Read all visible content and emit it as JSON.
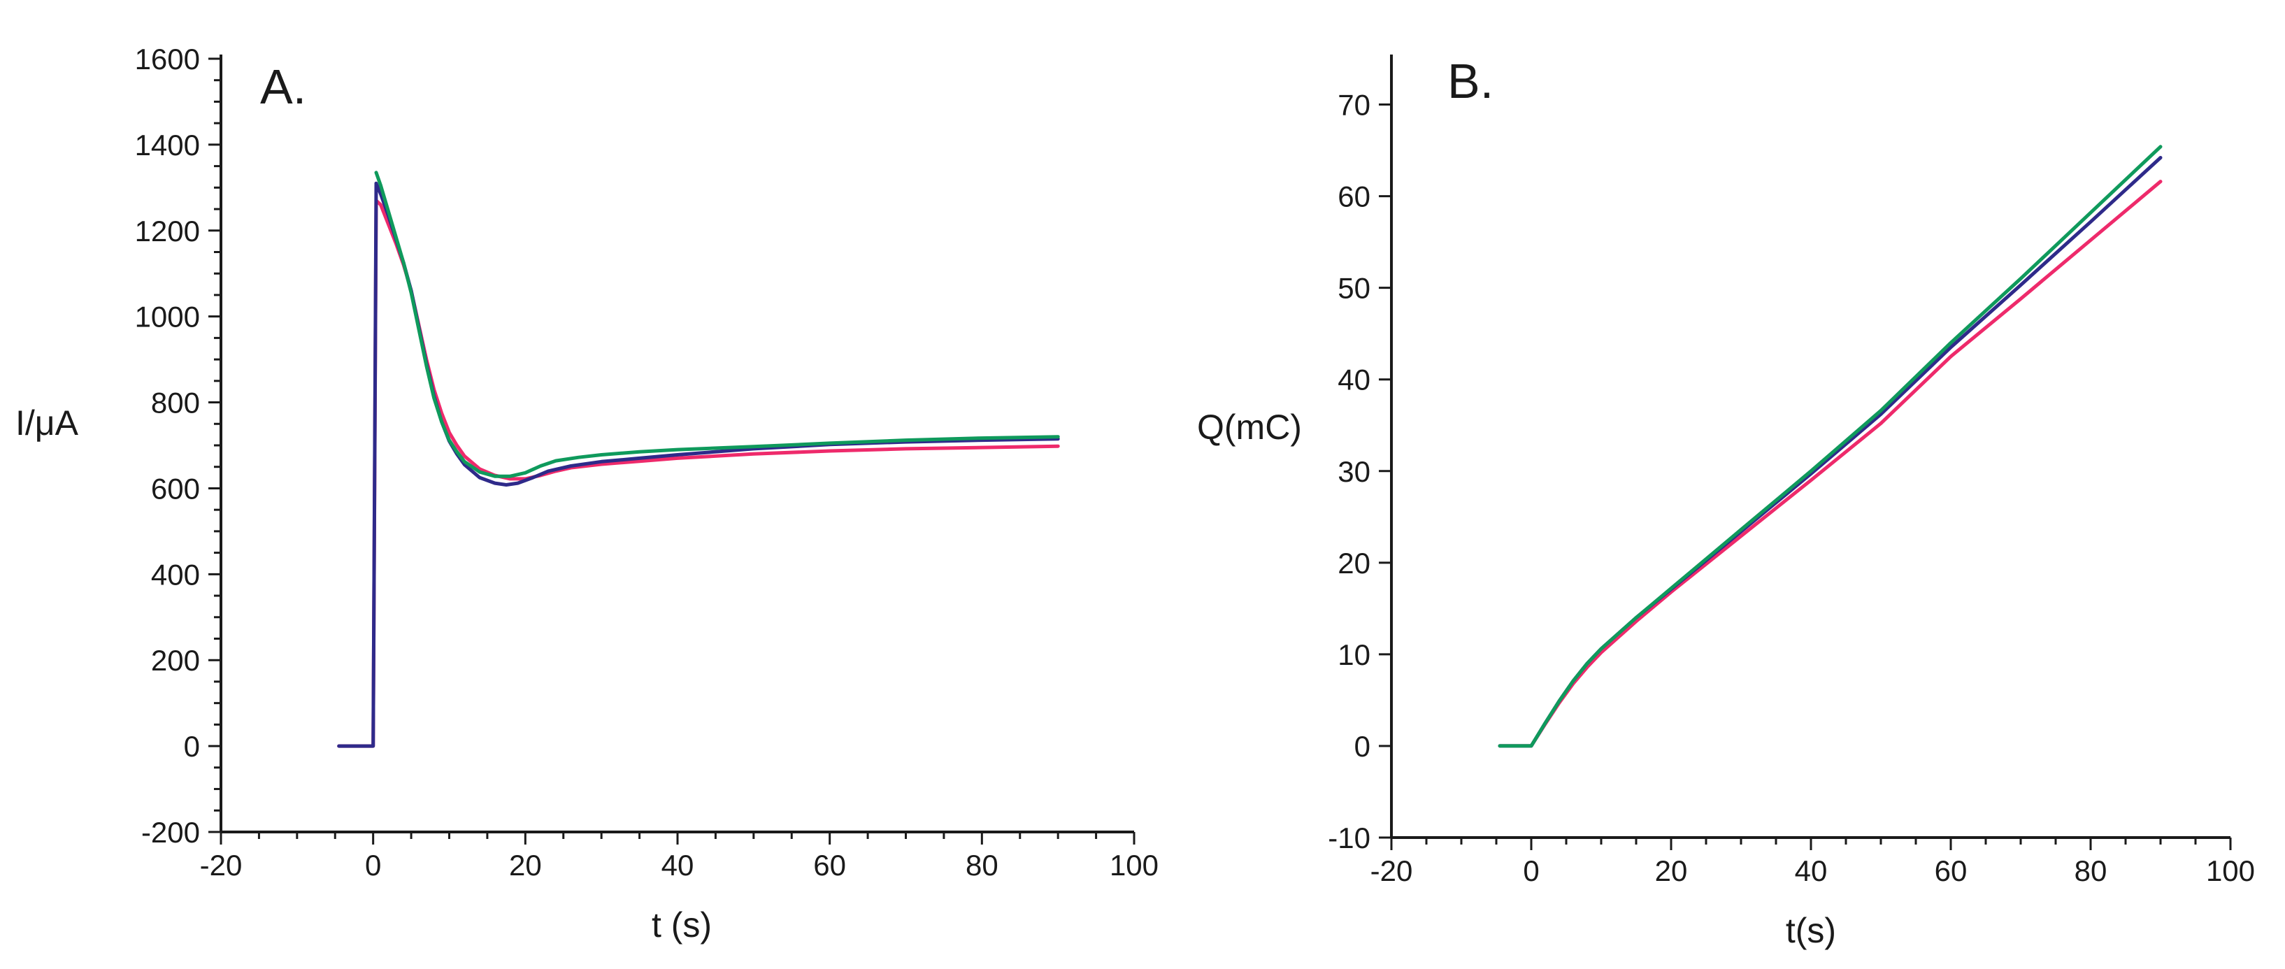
{
  "chart_data": [
    {
      "type": "line",
      "panel_label": "A.",
      "title": "",
      "xlabel": "t (s)",
      "ylabel": "I/μA",
      "xlim": [
        -20,
        100
      ],
      "ylim": [
        -200,
        1600
      ],
      "xticks": [
        -20,
        0,
        20,
        40,
        60,
        80,
        100
      ],
      "yticks": [
        -200,
        0,
        200,
        400,
        600,
        800,
        1000,
        1200,
        1400,
        1600
      ],
      "grid": false,
      "legend": "none",
      "series": [
        {
          "name": "pink",
          "color": "#ee2a6b",
          "x": [
            -4.5,
            0,
            0.4,
            1,
            2,
            3,
            4,
            5,
            6,
            7,
            8,
            9,
            10,
            11,
            12,
            14,
            16,
            18,
            20,
            22,
            24,
            26,
            30,
            35,
            40,
            50,
            60,
            70,
            80,
            90
          ],
          "y": [
            0,
            0,
            1270,
            1260,
            1215,
            1170,
            1120,
            1060,
            980,
            900,
            830,
            775,
            730,
            700,
            675,
            645,
            630,
            622,
            622,
            630,
            640,
            648,
            656,
            663,
            670,
            680,
            687,
            692,
            695,
            698
          ]
        },
        {
          "name": "blue",
          "color": "#2e2a8a",
          "x": [
            -4.5,
            0,
            0.4,
            1,
            2,
            3,
            4,
            5,
            6,
            7,
            8,
            9,
            10,
            11,
            12,
            14,
            16,
            17.5,
            19,
            21,
            23,
            26,
            30,
            35,
            40,
            50,
            60,
            70,
            80,
            90
          ],
          "y": [
            0,
            0,
            1310,
            1285,
            1235,
            1180,
            1125,
            1060,
            975,
            890,
            815,
            755,
            710,
            680,
            655,
            625,
            612,
            608,
            612,
            625,
            640,
            652,
            662,
            670,
            678,
            692,
            702,
            708,
            712,
            715
          ]
        },
        {
          "name": "green",
          "color": "#0f9a5c",
          "x": [
            0.4,
            1,
            2,
            3,
            4,
            5,
            6,
            7,
            8,
            9,
            10,
            11,
            12,
            14,
            16,
            18,
            20,
            22,
            24,
            27,
            30,
            35,
            40,
            50,
            60,
            70,
            80,
            90
          ],
          "y": [
            1335,
            1305,
            1245,
            1185,
            1125,
            1055,
            970,
            885,
            810,
            755,
            712,
            685,
            662,
            638,
            628,
            628,
            636,
            652,
            664,
            672,
            678,
            685,
            690,
            697,
            705,
            712,
            717,
            720
          ]
        }
      ]
    },
    {
      "type": "line",
      "panel_label": "B.",
      "title": "",
      "xlabel": "t(s)",
      "ylabel": "Q(mC)",
      "xlim": [
        -20,
        100
      ],
      "ylim": [
        -10,
        75
      ],
      "xticks": [
        -20,
        0,
        20,
        40,
        60,
        80,
        100
      ],
      "xtick_labels": [
        "-20",
        "0",
        "20",
        "40",
        "60",
        "80",
        "100"
      ],
      "yticks": [
        -10,
        0,
        10,
        20,
        30,
        40,
        50,
        60,
        70
      ],
      "grid": false,
      "legend": "none",
      "series": [
        {
          "name": "pink",
          "color": "#ee2a6b",
          "x": [
            -4.5,
            0,
            2,
            4,
            6,
            8,
            10,
            15,
            20,
            30,
            40,
            50,
            60,
            70,
            80,
            90
          ],
          "y": [
            0,
            0,
            2.4,
            4.7,
            6.8,
            8.6,
            10.2,
            13.6,
            16.8,
            22.9,
            29,
            35.2,
            42.5,
            48.8,
            55.2,
            61.6
          ]
        },
        {
          "name": "blue",
          "color": "#2e2a8a",
          "x": [
            -4.5,
            0,
            2,
            4,
            6,
            8,
            10,
            15,
            20,
            30,
            40,
            50,
            60,
            70,
            80,
            90
          ],
          "y": [
            0,
            0,
            2.5,
            4.9,
            7.1,
            9,
            10.6,
            14,
            17.1,
            23.4,
            29.7,
            36.2,
            43.5,
            50.3,
            57.2,
            64.2
          ]
        },
        {
          "name": "green",
          "color": "#0f9a5c",
          "x": [
            -4.5,
            0,
            2,
            4,
            6,
            8,
            10,
            15,
            20,
            30,
            40,
            50,
            60,
            70,
            80,
            90
          ],
          "y": [
            0,
            0,
            2.5,
            4.9,
            7.1,
            9,
            10.6,
            14,
            17.2,
            23.6,
            30,
            36.6,
            44,
            51,
            58.2,
            65.4
          ]
        }
      ]
    }
  ]
}
